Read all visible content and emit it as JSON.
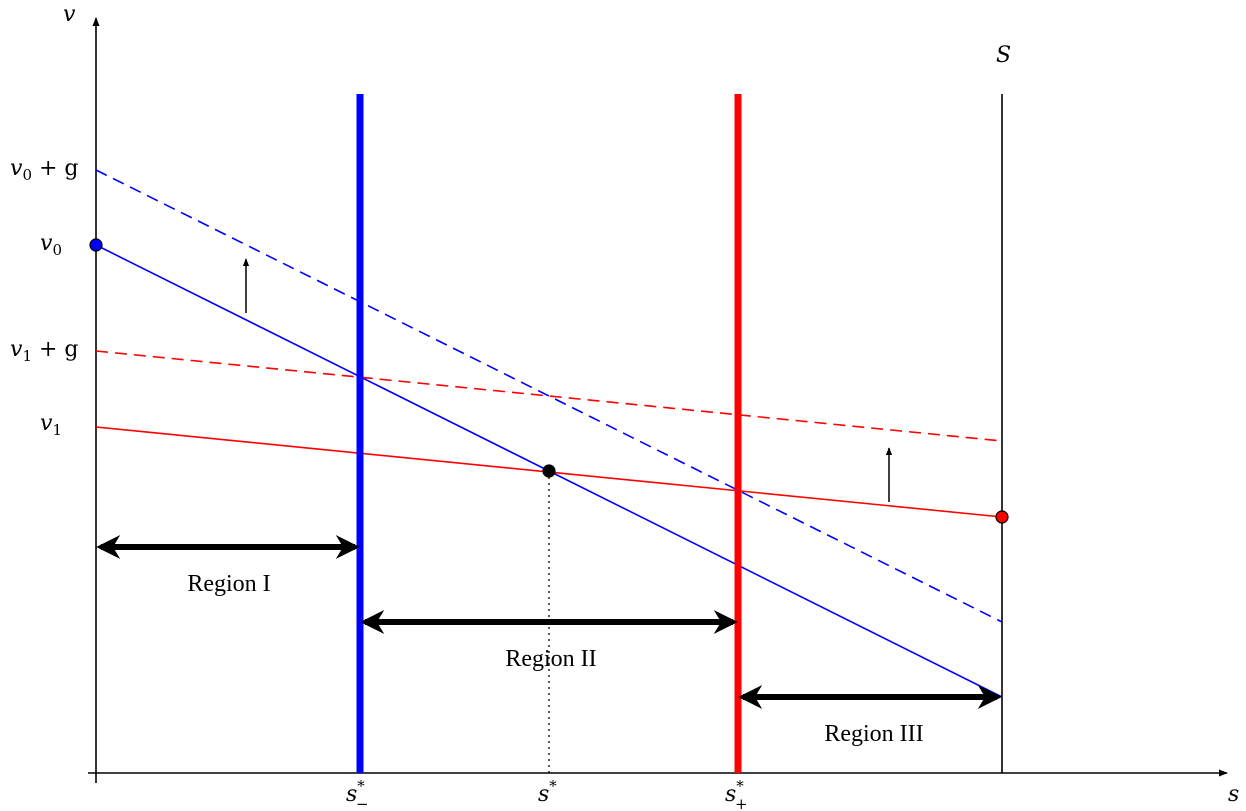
{
  "axes": {
    "x_label": "s",
    "y_label": "v"
  },
  "boundary_label": "S",
  "y_labels": {
    "v0_plus_g": {
      "main": "v",
      "sub": "0",
      "rest": " + g"
    },
    "v0": {
      "main": "v",
      "sub": "0"
    },
    "v1_plus_g": {
      "main": "v",
      "sub": "1",
      "rest": " + g"
    },
    "v1": {
      "main": "v",
      "sub": "1"
    }
  },
  "x_labels": {
    "s_minus": {
      "main": "s",
      "sup": "*",
      "sub": "−"
    },
    "s_star": {
      "main": "s",
      "sup": "*"
    },
    "s_plus": {
      "main": "s",
      "sup": "*",
      "sub": "+"
    }
  },
  "regions": {
    "region_1": "Region I",
    "region_2": "Region II",
    "region_3": "Region III"
  },
  "colors": {
    "blue": "#0000ff",
    "red": "#ff0000",
    "black": "#000000"
  }
}
